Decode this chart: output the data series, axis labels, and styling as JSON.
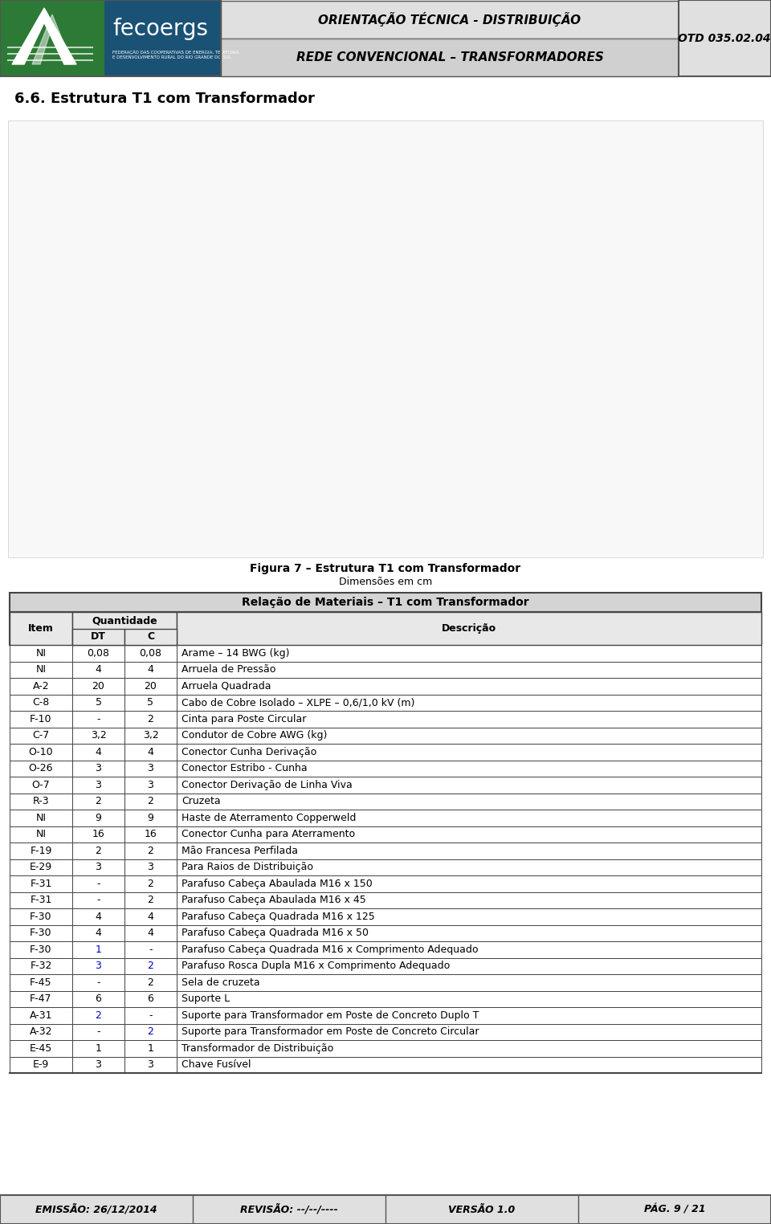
{
  "header_title1": "ORIENTAÇÃO TÉCNICA - DISTRIBUIÇÃO",
  "header_title2": "REDE CONVENCIONAL – TRANSFORMADORES",
  "header_code": "OTD 035.02.04",
  "page_title": "6.6. Estrutura T1 com Transformador",
  "figure_caption1": "Figura 7 – Estrutura T1 com Transformador",
  "figure_caption2": "Dimensões em cm",
  "table_title": "Relação de Materiais – T1 com Transformador",
  "col_item": "Item",
  "col_quantidade": "Quantidade",
  "col_dt": "DT",
  "col_c": "C",
  "col_descricao": "Descrição",
  "footer_emissao": "EMISSÃO: 26/12/2014",
  "footer_revisao": "REVISÃO: --/--/----",
  "footer_versao": "VERSÃO 1.0",
  "footer_pag": "PÁG. 9 / 21",
  "rows": [
    {
      "item": "NI",
      "dt": "0,08",
      "c": "0,08",
      "descricao": "Arame – 14 BWG (kg)",
      "dt_color": "black",
      "c_color": "black"
    },
    {
      "item": "NI",
      "dt": "4",
      "c": "4",
      "descricao": "Arruela de Pressão",
      "dt_color": "black",
      "c_color": "black"
    },
    {
      "item": "A-2",
      "dt": "20",
      "c": "20",
      "descricao": "Arruela Quadrada",
      "dt_color": "black",
      "c_color": "black"
    },
    {
      "item": "C-8",
      "dt": "5",
      "c": "5",
      "descricao": "Cabo de Cobre Isolado – XLPE – 0,6/1,0 kV (m)",
      "dt_color": "black",
      "c_color": "black"
    },
    {
      "item": "F-10",
      "dt": "-",
      "c": "2",
      "descricao": "Cinta para Poste Circular",
      "dt_color": "black",
      "c_color": "black"
    },
    {
      "item": "C-7",
      "dt": "3,2",
      "c": "3,2",
      "descricao": "Condutor de Cobre AWG (kg)",
      "dt_color": "black",
      "c_color": "black"
    },
    {
      "item": "O-10",
      "dt": "4",
      "c": "4",
      "descricao": "Conector Cunha Derivação",
      "dt_color": "black",
      "c_color": "black"
    },
    {
      "item": "O-26",
      "dt": "3",
      "c": "3",
      "descricao": "Conector Estribo - Cunha",
      "dt_color": "black",
      "c_color": "black"
    },
    {
      "item": "O-7",
      "dt": "3",
      "c": "3",
      "descricao": "Conector Derivação de Linha Viva",
      "dt_color": "black",
      "c_color": "black"
    },
    {
      "item": "R-3",
      "dt": "2",
      "c": "2",
      "descricao": "Cruzeta",
      "dt_color": "black",
      "c_color": "black"
    },
    {
      "item": "NI",
      "dt": "9",
      "c": "9",
      "descricao": "Haste de Aterramento Copperweld",
      "dt_color": "black",
      "c_color": "black"
    },
    {
      "item": "NI",
      "dt": "16",
      "c": "16",
      "descricao": "Conector Cunha para Aterramento",
      "dt_color": "black",
      "c_color": "black"
    },
    {
      "item": "F-19",
      "dt": "2",
      "c": "2",
      "descricao": "Mão Francesa Perfilada",
      "dt_color": "black",
      "c_color": "black"
    },
    {
      "item": "E-29",
      "dt": "3",
      "c": "3",
      "descricao": "Para Raios de Distribuição",
      "dt_color": "black",
      "c_color": "black"
    },
    {
      "item": "F-31",
      "dt": "-",
      "c": "2",
      "descricao": "Parafuso Cabeça Abaulada M16 x 150",
      "dt_color": "black",
      "c_color": "black"
    },
    {
      "item": "F-31",
      "dt": "-",
      "c": "2",
      "descricao": "Parafuso Cabeça Abaulada M16 x 45",
      "dt_color": "black",
      "c_color": "black"
    },
    {
      "item": "F-30",
      "dt": "4",
      "c": "4",
      "descricao": "Parafuso Cabeça Quadrada M16 x 125",
      "dt_color": "black",
      "c_color": "black"
    },
    {
      "item": "F-30",
      "dt": "4",
      "c": "4",
      "descricao": "Parafuso Cabeça Quadrada M16 x 50",
      "dt_color": "black",
      "c_color": "black"
    },
    {
      "item": "F-30",
      "dt": "1",
      "c": "-",
      "descricao": "Parafuso Cabeça Quadrada M16 x Comprimento Adequado",
      "dt_color": "#0000cc",
      "c_color": "black"
    },
    {
      "item": "F-32",
      "dt": "3",
      "c": "2",
      "descricao": "Parafuso Rosca Dupla M16 x Comprimento Adequado",
      "dt_color": "#0000cc",
      "c_color": "#0000cc"
    },
    {
      "item": "F-45",
      "dt": "-",
      "c": "2",
      "descricao": "Sela de cruzeta",
      "dt_color": "black",
      "c_color": "black"
    },
    {
      "item": "F-47",
      "dt": "6",
      "c": "6",
      "descricao": "Suporte L",
      "dt_color": "black",
      "c_color": "black"
    },
    {
      "item": "A-31",
      "dt": "2",
      "c": "-",
      "descricao": "Suporte para Transformador em Poste de Concreto Duplo T",
      "dt_color": "#0000cc",
      "c_color": "black"
    },
    {
      "item": "A-32",
      "dt": "-",
      "c": "2",
      "descricao": "Suporte para Transformador em Poste de Concreto Circular",
      "dt_color": "black",
      "c_color": "#0000cc"
    },
    {
      "item": "E-45",
      "dt": "1",
      "c": "1",
      "descricao": "Transformador de Distribuição",
      "dt_color": "black",
      "c_color": "black"
    },
    {
      "item": "E-9",
      "dt": "3",
      "c": "3",
      "descricao": "Chave Fusível",
      "dt_color": "black",
      "c_color": "black"
    }
  ],
  "header_logo_green": "#2d7a36",
  "header_logo_blue": "#1a5276",
  "header_mid_bg": "#dcdcdc",
  "header_mid_bg2": "#c8c8c8",
  "header_otd_bg": "#e0e0e0",
  "table_border": "#444444",
  "table_header_bg": "#d4d4d4",
  "table_subheader_bg": "#e8e8e8",
  "footer_bg": "#e0e0e0",
  "footer_border": "#555555",
  "diagram_bg": "#f8f8f8"
}
